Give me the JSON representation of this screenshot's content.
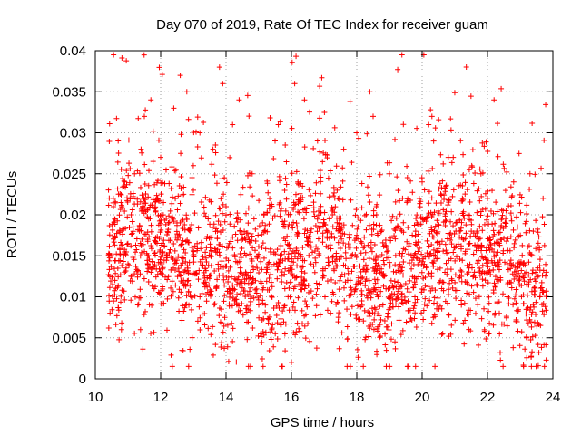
{
  "chart_data": {
    "type": "scatter",
    "title": "Day 070 of 2019, Rate Of TEC Index for receiver guam",
    "xlabel": "GPS time / hours",
    "ylabel": "ROTI / TECUs",
    "xlim": [
      10,
      24
    ],
    "ylim": [
      0,
      0.04
    ],
    "x_ticks": [
      10,
      12,
      14,
      16,
      18,
      20,
      22,
      24
    ],
    "x_tick_labels": [
      "10",
      "12",
      "14",
      "16",
      "18",
      "20",
      "22",
      "24"
    ],
    "y_ticks": [
      0,
      0.005,
      0.01,
      0.015,
      0.02,
      0.025,
      0.03,
      0.035,
      0.04
    ],
    "y_tick_labels": [
      "0",
      "0.005",
      "0.01",
      "0.015",
      "0.02",
      "0.025",
      "0.03",
      "0.035",
      "0.04"
    ],
    "grid": true,
    "marker": "+",
    "color": "#ff0000",
    "data_x_range": [
      10.4,
      23.8
    ],
    "points_estimated": [
      [
        10.45,
        0.008
      ],
      [
        10.5,
        0.015
      ],
      [
        10.55,
        0.022
      ],
      [
        10.6,
        0.012
      ],
      [
        10.7,
        0.029
      ],
      [
        10.75,
        0.018
      ],
      [
        10.8,
        0.006
      ],
      [
        10.9,
        0.024
      ],
      [
        11.0,
        0.014
      ],
      [
        11.1,
        0.02
      ],
      [
        11.2,
        0.025
      ],
      [
        11.3,
        0.009
      ],
      [
        11.4,
        0.028
      ],
      [
        11.5,
        0.032
      ],
      [
        11.6,
        0.017
      ],
      [
        11.7,
        0.034
      ],
      [
        11.8,
        0.011
      ],
      [
        11.9,
        0.022
      ],
      [
        12.0,
        0.027
      ],
      [
        12.2,
        0.015
      ],
      [
        12.4,
        0.033
      ],
      [
        12.5,
        0.019
      ],
      [
        12.6,
        0.037
      ],
      [
        12.7,
        0.012
      ],
      [
        12.8,
        0.035
      ],
      [
        13.0,
        0.023
      ],
      [
        13.2,
        0.03
      ],
      [
        13.4,
        0.016
      ],
      [
        13.6,
        0.028
      ],
      [
        13.8,
        0.038
      ],
      [
        13.9,
        0.036
      ],
      [
        14.0,
        0.021
      ],
      [
        14.2,
        0.031
      ],
      [
        14.4,
        0.034
      ],
      [
        14.6,
        0.013
      ],
      [
        14.8,
        0.025
      ],
      [
        15.0,
        0.009
      ],
      [
        15.2,
        0.018
      ],
      [
        15.4,
        0.006
      ],
      [
        15.5,
        0.029
      ],
      [
        15.6,
        0.031
      ],
      [
        15.8,
        0.011
      ],
      [
        16.0,
        0.002
      ],
      [
        16.1,
        0.036
      ],
      [
        16.2,
        0.024
      ],
      [
        16.4,
        0.034
      ],
      [
        16.6,
        0.014
      ],
      [
        16.8,
        0.029
      ],
      [
        17.0,
        0.019
      ],
      [
        17.2,
        0.008
      ],
      [
        17.4,
        0.023
      ],
      [
        17.6,
        0.028
      ],
      [
        17.8,
        0.012
      ],
      [
        18.0,
        0.03
      ],
      [
        18.2,
        0.016
      ],
      [
        18.4,
        0.035
      ],
      [
        18.5,
        0.032
      ],
      [
        18.6,
        0.021
      ],
      [
        18.8,
        0.009
      ],
      [
        19.0,
        0.025
      ],
      [
        19.2,
        0.013
      ],
      [
        19.4,
        0.022
      ],
      [
        19.6,
        0.007
      ],
      [
        19.8,
        0.018
      ],
      [
        20.0,
        0.024
      ],
      [
        20.2,
        0.031
      ],
      [
        20.3,
        0.032
      ],
      [
        20.4,
        0.015
      ],
      [
        20.6,
        0.011
      ],
      [
        20.8,
        0.027
      ],
      [
        21.0,
        0.016
      ],
      [
        21.2,
        0.009
      ],
      [
        21.4,
        0.02
      ],
      [
        21.6,
        0.013
      ],
      [
        21.8,
        0.025
      ],
      [
        22.0,
        0.022
      ],
      [
        22.2,
        0.034
      ],
      [
        22.4,
        0.017
      ],
      [
        22.6,
        0.01
      ],
      [
        22.8,
        0.024
      ],
      [
        23.0,
        0.014
      ],
      [
        23.2,
        0.005
      ],
      [
        23.3,
        0.025
      ],
      [
        23.4,
        0.018
      ],
      [
        23.6,
        0.01
      ],
      [
        23.7,
        0.022
      ],
      [
        23.8,
        0.013
      ]
    ]
  }
}
